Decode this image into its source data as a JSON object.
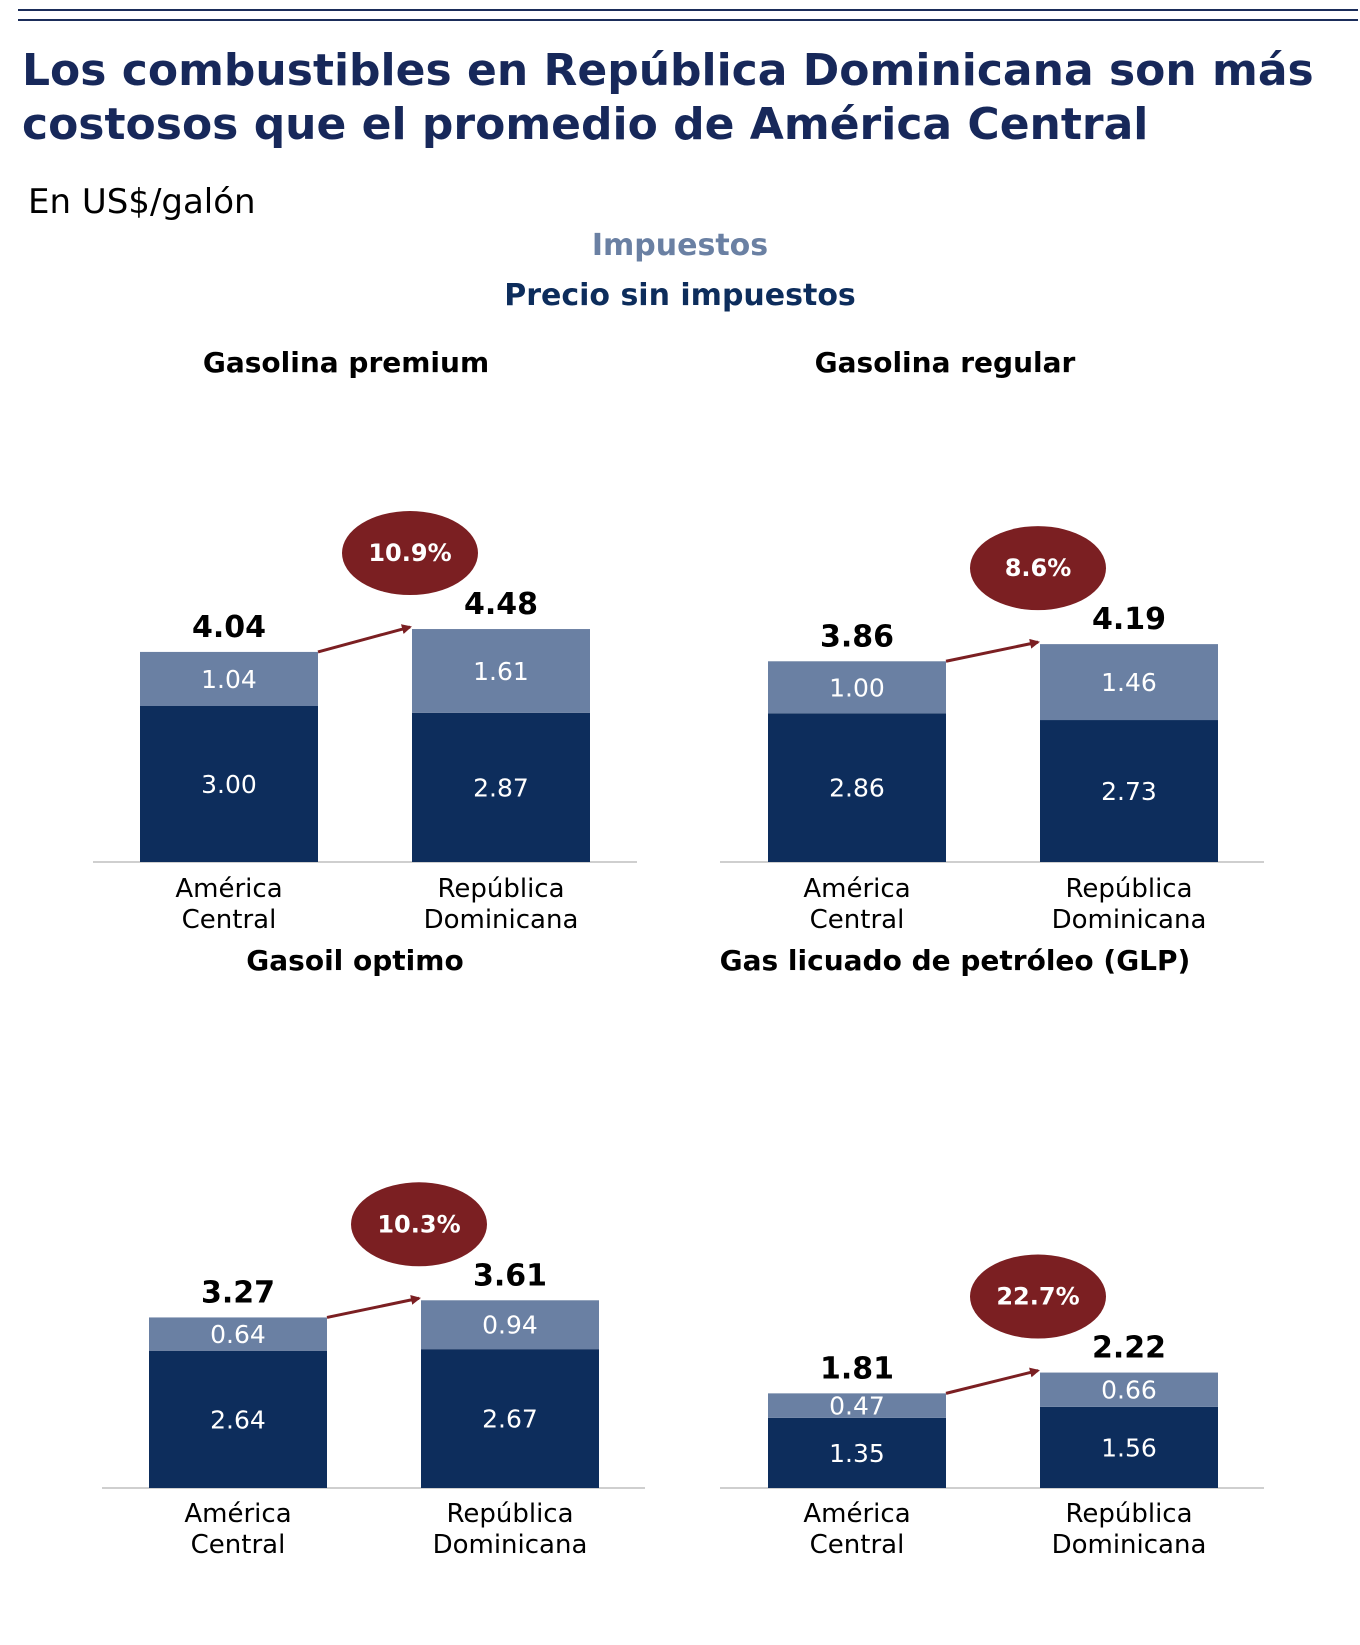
{
  "title": "Los combustibles en República Dominicana son más costosos que el promedio de América Central",
  "subtitle": "En US$/galón",
  "legend": {
    "tax_label": "Impuestos",
    "base_label": "Precio sin impuestos"
  },
  "colors": {
    "tax": "#6a80a3",
    "base": "#0d2d5c",
    "badge": "#7b1f22",
    "arrow": "#7b1f22",
    "title": "#17285a"
  },
  "chart_data": [
    {
      "type": "bar",
      "stacked": true,
      "title": "Gasolina premium",
      "categories": [
        "América\nCentral",
        "República\nDominicana"
      ],
      "series": [
        {
          "name": "Precio sin impuestos",
          "values": [
            3.0,
            2.87
          ],
          "labels": [
            "3.00",
            "2.87"
          ]
        },
        {
          "name": "Impuestos",
          "values": [
            1.04,
            1.61
          ],
          "labels": [
            "1.04",
            "1.61"
          ]
        }
      ],
      "totals": [
        "4.04",
        "4.48"
      ],
      "change_label": "10.9%"
    },
    {
      "type": "bar",
      "stacked": true,
      "title": "Gasolina regular",
      "categories": [
        "América\nCentral",
        "República\nDominicana"
      ],
      "series": [
        {
          "name": "Precio sin impuestos",
          "values": [
            2.86,
            2.73
          ],
          "labels": [
            "2.86",
            "2.73"
          ]
        },
        {
          "name": "Impuestos",
          "values": [
            1.0,
            1.46
          ],
          "labels": [
            "1.00",
            "1.46"
          ]
        }
      ],
      "totals": [
        "3.86",
        "4.19"
      ],
      "change_label": "8.6%"
    },
    {
      "type": "bar",
      "stacked": true,
      "title": "Gasoil optimo",
      "categories": [
        "América\nCentral",
        "República\nDominicana"
      ],
      "series": [
        {
          "name": "Precio sin impuestos",
          "values": [
            2.64,
            2.67
          ],
          "labels": [
            "2.64",
            "2.67"
          ]
        },
        {
          "name": "Impuestos",
          "values": [
            0.64,
            0.94
          ],
          "labels": [
            "0.64",
            "0.94"
          ]
        }
      ],
      "totals": [
        "3.27",
        "3.61"
      ],
      "change_label": "10.3%"
    },
    {
      "type": "bar",
      "stacked": true,
      "title": "Gas licuado de petróleo (GLP)",
      "categories": [
        "América\nCentral",
        "República\nDominicana"
      ],
      "series": [
        {
          "name": "Precio sin impuestos",
          "values": [
            1.35,
            1.56
          ],
          "labels": [
            "1.35",
            "1.56"
          ]
        },
        {
          "name": "Impuestos",
          "values": [
            0.47,
            0.66
          ],
          "labels": [
            "0.47",
            "0.66"
          ]
        }
      ],
      "totals": [
        "1.81",
        "2.22"
      ],
      "change_label": "22.7%"
    }
  ]
}
